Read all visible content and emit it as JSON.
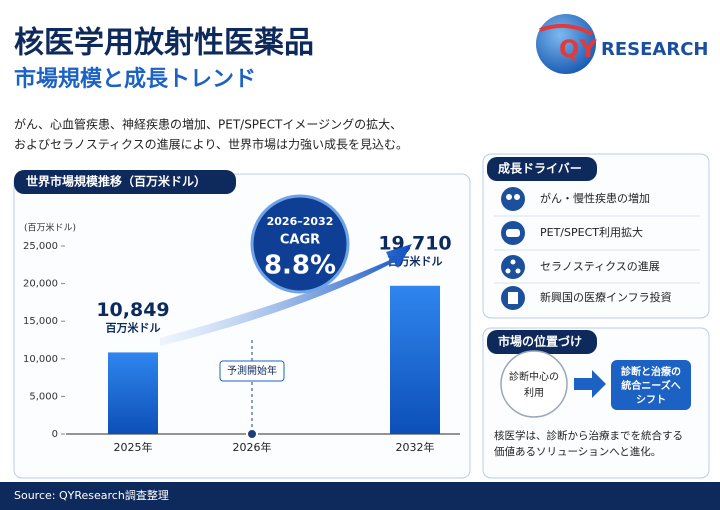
{
  "header": {
    "title": "核医学用放射性医薬品",
    "subtitle": "市場規模と成長トレンド",
    "description": [
      "がん、心血管疾患、神経疾患の増加、PET/SPECTイメージングの拡大、",
      "およびセラノスティクスの進展により、世界市場は力強い成長を見込む。"
    ]
  },
  "logo": [
    "QY",
    "RESEARCH"
  ],
  "chart_data": {
    "type": "bar",
    "title": "世界市場規模推移（百万米ドル）",
    "y_label": "(百万米ドル)",
    "categories": [
      "2025年",
      "2026年",
      "2032年"
    ],
    "values": [
      10849,
      null,
      19710
    ],
    "value_labels": [
      "10,849",
      null,
      "19,710"
    ],
    "value_unit": "百万米ドル",
    "color": "#1f6fd6",
    "ylim": [
      0,
      25000
    ],
    "yticks": [
      0,
      {
        "value": 5000,
        "label": "5,000"
      },
      {
        "value": 10000,
        "label": "10,000"
      },
      {
        "value": 15000,
        "label": "15,000"
      },
      {
        "value": 20000,
        "label": "20,000"
      },
      {
        "value": 25000,
        "label": "25,000"
      }
    ],
    "cagr": {
      "period": "2026–2032",
      "label": "CAGR",
      "value": "8.8%"
    },
    "annotation": "予測開始年"
  },
  "drivers": {
    "title": "成長ドライバー",
    "items": [
      "がん・慢性疾患の増加",
      "PET/SPECT利用拡大",
      "セラノスティクスの進展",
      "新興国の医療インフラ投資"
    ]
  },
  "positioning": {
    "title": "市場の位置づけ",
    "from": [
      "診断中心の",
      "利用"
    ],
    "to": [
      "診断と治療の",
      "統合ニーズへ",
      "シフト"
    ],
    "text": [
      "核医学は、診断から治療までを統合する",
      "価値あるソリューションへと進化。"
    ]
  },
  "footer": "Source: QYResearch調査整理"
}
